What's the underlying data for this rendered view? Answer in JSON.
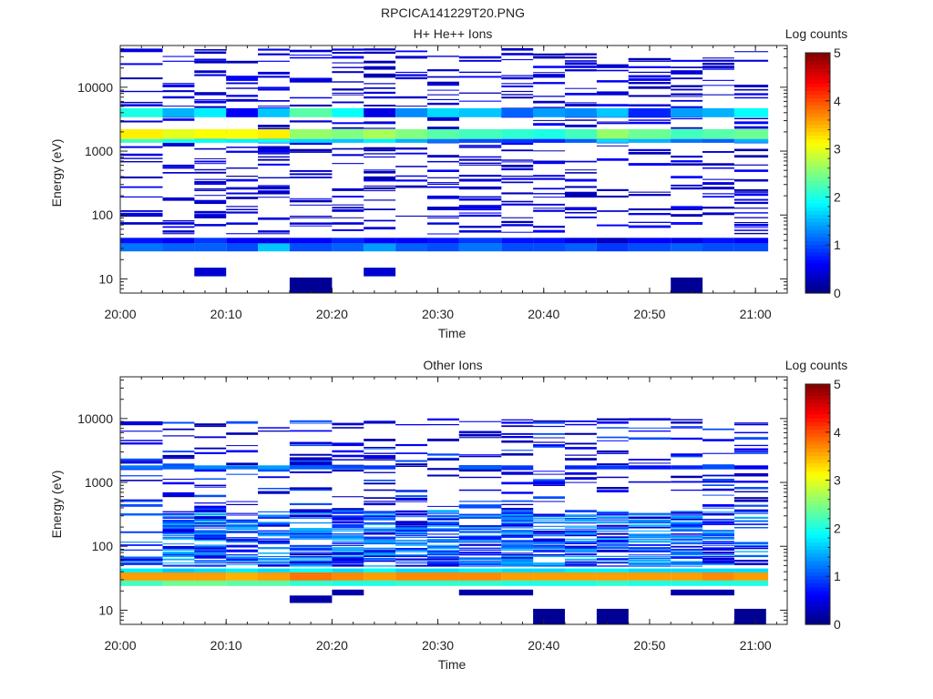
{
  "figure": {
    "title": "RPCICA141229T20.PNG"
  },
  "chart_data": [
    {
      "type": "heatmap",
      "title": "H+ He++ Ions",
      "xlabel": "Time",
      "ylabel": "Energy (eV)",
      "yscale": "log",
      "ylim": [
        6,
        45000
      ],
      "xlim": [
        "20:00",
        "21:03"
      ],
      "x_ticks": [
        "20:00",
        "20:10",
        "20:20",
        "20:30",
        "20:40",
        "20:50",
        "21:00"
      ],
      "y_ticks": [
        "10",
        "100",
        "1000",
        "10000"
      ],
      "y_tick_values": [
        10,
        100,
        1000,
        10000
      ],
      "colorbar": {
        "label": "Log counts",
        "range": [
          0,
          5
        ],
        "ticks": [
          "0",
          "1",
          "2",
          "3",
          "4",
          "5"
        ],
        "colormap": "jet"
      },
      "time_bins_start": [
        "20:00",
        "20:04",
        "20:07",
        "20:10",
        "20:13",
        "20:16",
        "20:20",
        "20:23",
        "20:26",
        "20:29",
        "20:32",
        "20:36",
        "20:39",
        "20:42",
        "20:45",
        "20:48",
        "20:52",
        "20:55",
        "20:58"
      ],
      "bands": [
        {
          "e_low": 1550,
          "e_high": 2200,
          "values": [
            3.2,
            3.0,
            3.1,
            3.1,
            3.2,
            2.6,
            2.5,
            2.7,
            2.5,
            2.3,
            2.2,
            2.1,
            2.0,
            2.2,
            2.6,
            2.4,
            2.2,
            2.3,
            2.4
          ]
        },
        {
          "e_low": 1350,
          "e_high": 1550,
          "values": [
            2.2,
            2.0,
            1.9,
            1.8,
            1.9,
            1.7,
            1.6,
            1.8,
            1.5,
            1.2,
            1.0,
            0.9,
            0.8,
            1.1,
            1.7,
            1.5,
            1.2,
            1.1,
            1.5
          ]
        },
        {
          "e_low": 3400,
          "e_high": 4700,
          "values": [
            2.0,
            1.5,
            1.8,
            0.6,
            1.6,
            2.3,
            1.9,
            0.5,
            1.3,
            1.7,
            1.6,
            1.1,
            1.4,
            1.3,
            1.6,
            0.8,
            1.4,
            1.5,
            1.9
          ]
        },
        {
          "e_low": 27,
          "e_high": 36,
          "values": [
            1.2,
            1.1,
            1.1,
            1.0,
            1.6,
            1.0,
            1.1,
            1.4,
            1.1,
            1.0,
            1.2,
            1.0,
            1.0,
            1.1,
            0.9,
            1.0,
            1.1,
            1.0,
            1.0
          ]
        },
        {
          "e_low": 36,
          "e_high": 44,
          "values": [
            0.7,
            0.6,
            0.9,
            0.6,
            0.5,
            0.6,
            0.8,
            0.6,
            0.6,
            0.7,
            0.9,
            0.7,
            0.7,
            0.5,
            0.3,
            0.6,
            0.5,
            0.7,
            0.6
          ]
        }
      ],
      "sparse_values": [
        0.25,
        0.45,
        0.35,
        0.6
      ],
      "sparse_density": 0.24,
      "sparse_range": [
        50,
        40000
      ],
      "blocks": [
        {
          "t0": "20:07",
          "t1": "20:10",
          "e_low": 11,
          "e_high": 15,
          "value": 0.4
        },
        {
          "t0": "20:16",
          "t1": "20:20",
          "e_low": 6,
          "e_high": 10.5,
          "value": 0.1
        },
        {
          "t0": "20:23",
          "t1": "20:26",
          "e_low": 11,
          "e_high": 15,
          "value": 0.4
        },
        {
          "t0": "20:52",
          "t1": "20:55",
          "e_low": 6,
          "e_high": 10.5,
          "value": 0.1
        }
      ]
    },
    {
      "type": "heatmap",
      "title": "Other Ions",
      "xlabel": "Time",
      "ylabel": "Energy (eV)",
      "yscale": "log",
      "ylim": [
        6,
        45000
      ],
      "xlim": [
        "20:00",
        "21:03"
      ],
      "x_ticks": [
        "20:00",
        "20:10",
        "20:20",
        "20:30",
        "20:40",
        "20:50",
        "21:00"
      ],
      "y_ticks": [
        "10",
        "100",
        "1000",
        "10000"
      ],
      "y_tick_values": [
        10,
        100,
        1000,
        10000
      ],
      "colorbar": {
        "label": "Log counts",
        "range": [
          0,
          5
        ],
        "ticks": [
          "0",
          "1",
          "2",
          "3",
          "4",
          "5"
        ],
        "colormap": "jet"
      },
      "time_bins_start": [
        "20:00",
        "20:04",
        "20:07",
        "20:10",
        "20:13",
        "20:16",
        "20:20",
        "20:23",
        "20:26",
        "20:29",
        "20:32",
        "20:36",
        "20:39",
        "20:42",
        "20:45",
        "20:48",
        "20:52",
        "20:55",
        "20:58"
      ],
      "bands": [
        {
          "e_low": 29,
          "e_high": 39,
          "values": [
            3.6,
            3.6,
            3.6,
            3.5,
            3.6,
            3.8,
            3.7,
            3.6,
            3.7,
            3.7,
            3.7,
            3.6,
            3.6,
            3.6,
            3.6,
            3.6,
            3.6,
            3.7,
            3.6
          ]
        },
        {
          "e_low": 24,
          "e_high": 29,
          "values": [
            2.2,
            2.4,
            2.4,
            2.3,
            2.3,
            2.1,
            2.0,
            2.0,
            2.1,
            2.1,
            2.1,
            2.0,
            2.0,
            2.0,
            2.1,
            2.0,
            2.0,
            2.0,
            2.0
          ]
        },
        {
          "e_low": 39,
          "e_high": 45,
          "values": [
            1.8,
            1.6,
            1.7,
            1.8,
            1.7,
            1.9,
            1.7,
            1.9,
            1.7,
            1.7,
            1.8,
            1.7,
            1.7,
            1.8,
            1.8,
            1.7,
            1.7,
            1.7,
            1.7
          ]
        },
        {
          "e_low": 1600,
          "e_high": 1850,
          "values": [
            1.2,
            1.1,
            1.3,
            1.2,
            1.4,
            1.1,
            1.0,
            0.9,
            0.0,
            0.0,
            1.1,
            0.9,
            0.0,
            0.8,
            0.9,
            0.7,
            0.8,
            1.0,
            0.6
          ]
        }
      ],
      "mid_density": [
        0.3,
        0.8,
        0.65,
        0.6,
        0.65,
        0.8,
        0.75,
        0.65,
        0.65,
        0.65,
        0.8,
        0.8,
        0.8,
        0.8,
        0.8,
        0.75,
        0.8,
        0.75,
        0.5
      ],
      "mid_values": [
        0.4,
        0.7,
        0.9,
        1.1,
        1.3,
        1.5
      ],
      "mid_range": [
        48,
        350
      ],
      "sparse_values": [
        0.25,
        0.45,
        0.6,
        1.0
      ],
      "sparse_density": 0.2,
      "sparse_range": [
        350,
        10000
      ],
      "blocks": [
        {
          "t0": "20:16",
          "t1": "20:20",
          "e_low": 13,
          "e_high": 17,
          "value": 0.2
        },
        {
          "t0": "20:20",
          "t1": "20:23",
          "e_low": 17,
          "e_high": 21,
          "value": 0.2
        },
        {
          "t0": "20:32",
          "t1": "20:39",
          "e_low": 17,
          "e_high": 21,
          "value": 0.2
        },
        {
          "t0": "20:39",
          "t1": "20:42",
          "e_low": 6,
          "e_high": 10.5,
          "value": 0.1
        },
        {
          "t0": "20:45",
          "t1": "20:48",
          "e_low": 6,
          "e_high": 10.5,
          "value": 0.1
        },
        {
          "t0": "20:52",
          "t1": "20:58",
          "e_low": 17,
          "e_high": 21,
          "value": 0.2
        },
        {
          "t0": "20:58",
          "t1": "21:01",
          "e_low": 6,
          "e_high": 10.5,
          "value": 0.1
        }
      ]
    }
  ]
}
